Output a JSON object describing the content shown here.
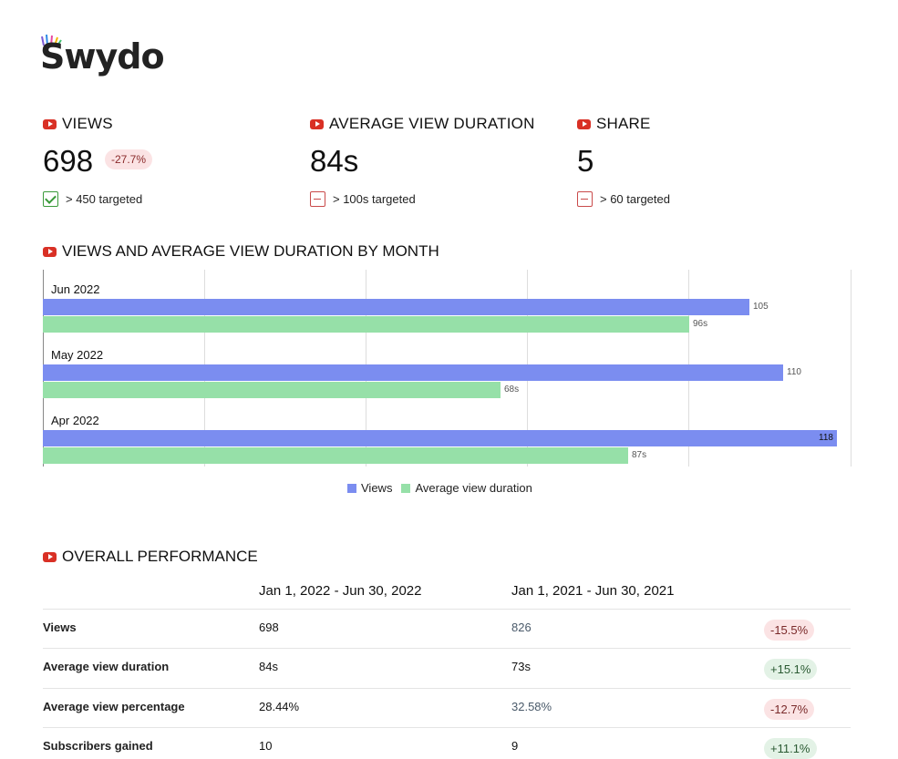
{
  "brand": {
    "logo_text": "Swydo"
  },
  "kpis": [
    {
      "title": "VIEWS",
      "value": "698",
      "change": "-27.7%",
      "target": "> 450 targeted",
      "target_met": true
    },
    {
      "title": "AVERAGE VIEW DURATION",
      "value": "84s",
      "change": "",
      "target": "> 100s targeted",
      "target_met": false
    },
    {
      "title": "SHARE",
      "value": "5",
      "change": "",
      "target": "> 60 targeted",
      "target_met": false
    }
  ],
  "chart_section": {
    "title": "VIEWS AND AVERAGE VIEW DURATION BY MONTH"
  },
  "chart_data": {
    "type": "bar",
    "orientation": "horizontal",
    "categories": [
      "Jun 2022",
      "May 2022",
      "Apr 2022"
    ],
    "series": [
      {
        "name": "Views",
        "values": [
          105,
          110,
          118
        ],
        "labels": [
          "105",
          "110",
          "118"
        ],
        "color": "#7b8df0"
      },
      {
        "name": "Average view duration",
        "values": [
          96,
          68,
          87
        ],
        "labels": [
          "96s",
          "68s",
          "87s"
        ],
        "color": "#96e0a8"
      }
    ],
    "grid": true,
    "legend": "bottom"
  },
  "performance": {
    "title": "OVERALL PERFORMANCE",
    "columns": [
      "Jan 1, 2022 - Jun 30, 2022",
      "Jan 1, 2021 - Jun 30, 2021"
    ],
    "rows": [
      {
        "label": "Views",
        "current": "698",
        "previous": "826",
        "change": "-15.5%",
        "trend": "neg"
      },
      {
        "label": "Average view duration",
        "current": "84s",
        "previous": "73s",
        "change": "+15.1%",
        "trend": "pos"
      },
      {
        "label": "Average view percentage",
        "current": "28.44%",
        "previous": "32.58%",
        "change": "-12.7%",
        "trend": "neg"
      },
      {
        "label": "Subscribers gained",
        "current": "10",
        "previous": "9",
        "change": "+11.1%",
        "trend": "pos"
      }
    ]
  },
  "colors": {
    "youtube_red": "#d93025",
    "views_bar": "#7b8df0",
    "duration_bar": "#96e0a8",
    "negative_badge": "#fbe3e4",
    "positive_badge": "#e3f2e6"
  }
}
